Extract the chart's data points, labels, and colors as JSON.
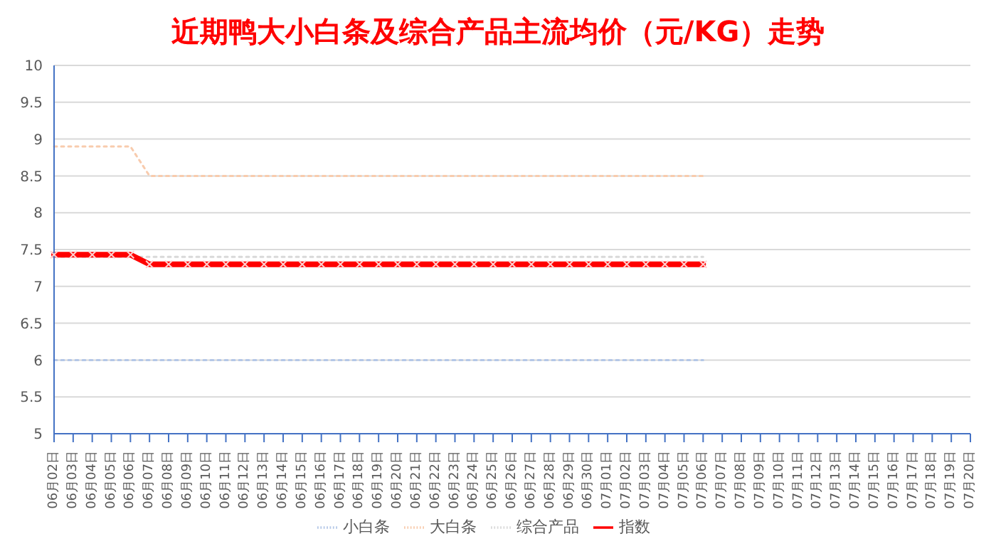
{
  "chart_data": {
    "type": "line",
    "title": "近期鸭大小白条及综合产品主流均价（元/KG）走势",
    "categories": [
      "06月02日",
      "06月03日",
      "06月04日",
      "06月05日",
      "06月06日",
      "06月07日",
      "06月08日",
      "06月09日",
      "06月10日",
      "06月11日",
      "06月12日",
      "06月13日",
      "06月14日",
      "06月15日",
      "06月16日",
      "06月17日",
      "06月18日",
      "06月19日",
      "06月20日",
      "06月21日",
      "06月22日",
      "06月23日",
      "06月24日",
      "06月25日",
      "06月26日",
      "06月27日",
      "06月28日",
      "06月29日",
      "06月30日",
      "07月01日",
      "07月02日",
      "07月03日",
      "07月04日",
      "07月05日",
      "07月06日",
      "07月07日",
      "07月08日",
      "07月09日",
      "07月10日",
      "07月11日",
      "07月12日",
      "07月13日",
      "07月14日",
      "07月15日",
      "07月16日",
      "07月17日",
      "07月18日",
      "07月19日",
      "07月20日"
    ],
    "series": [
      {
        "name": "小白条",
        "color": "#b4c7e7",
        "line_style": "dotted",
        "marker": "none",
        "values": [
          6,
          6,
          6,
          6,
          6,
          6,
          6,
          6,
          6,
          6,
          6,
          6,
          6,
          6,
          6,
          6,
          6,
          6,
          6,
          6,
          6,
          6,
          6,
          6,
          6,
          6,
          6,
          6,
          6,
          6,
          6,
          6,
          6,
          6,
          6,
          null,
          null,
          null,
          null,
          null,
          null,
          null,
          null,
          null,
          null,
          null,
          null,
          null,
          null
        ]
      },
      {
        "name": "大白条",
        "color": "#f8cbad",
        "line_style": "dotted",
        "marker": "none",
        "values": [
          8.9,
          8.9,
          8.9,
          8.9,
          8.9,
          8.5,
          8.5,
          8.5,
          8.5,
          8.5,
          8.5,
          8.5,
          8.5,
          8.5,
          8.5,
          8.5,
          8.5,
          8.5,
          8.5,
          8.5,
          8.5,
          8.5,
          8.5,
          8.5,
          8.5,
          8.5,
          8.5,
          8.5,
          8.5,
          8.5,
          8.5,
          8.5,
          8.5,
          8.5,
          8.5,
          null,
          null,
          null,
          null,
          null,
          null,
          null,
          null,
          null,
          null,
          null,
          null,
          null,
          null
        ]
      },
      {
        "name": "综合产品",
        "color": "#d9d9d9",
        "line_style": "dotted",
        "marker": "none",
        "values": [
          7.4,
          7.4,
          7.4,
          7.4,
          7.4,
          7.4,
          7.4,
          7.4,
          7.4,
          7.4,
          7.4,
          7.4,
          7.4,
          7.4,
          7.4,
          7.4,
          7.4,
          7.4,
          7.4,
          7.4,
          7.4,
          7.4,
          7.4,
          7.4,
          7.4,
          7.4,
          7.4,
          7.4,
          7.4,
          7.4,
          7.4,
          7.4,
          7.4,
          7.4,
          7.4,
          null,
          null,
          null,
          null,
          null,
          null,
          null,
          null,
          null,
          null,
          null,
          null,
          null,
          null
        ]
      },
      {
        "name": "指数",
        "color": "#ff0000",
        "line_style": "solid",
        "marker": "cross",
        "values": [
          7.43,
          7.43,
          7.43,
          7.43,
          7.43,
          7.3,
          7.3,
          7.3,
          7.3,
          7.3,
          7.3,
          7.3,
          7.3,
          7.3,
          7.3,
          7.3,
          7.3,
          7.3,
          7.3,
          7.3,
          7.3,
          7.3,
          7.3,
          7.3,
          7.3,
          7.3,
          7.3,
          7.3,
          7.3,
          7.3,
          7.3,
          7.3,
          7.3,
          7.3,
          7.3,
          null,
          null,
          null,
          null,
          null,
          null,
          null,
          null,
          null,
          null,
          null,
          null,
          null,
          null
        ]
      }
    ],
    "ylim": [
      5,
      10
    ],
    "yticks": [
      5,
      5.5,
      6,
      6.5,
      7,
      7.5,
      8,
      8.5,
      9,
      9.5,
      10
    ],
    "grid": "y",
    "legend": "bottom"
  }
}
